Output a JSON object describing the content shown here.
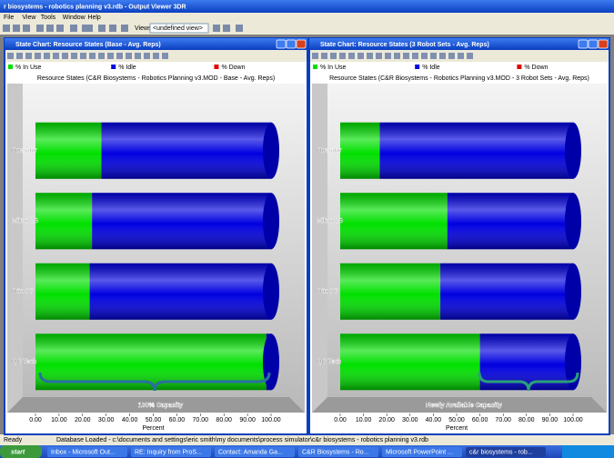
{
  "app": {
    "title": "r biosystems - robotics planning v3.rdb - Output Viewer 3DR",
    "menu": [
      "File",
      "View",
      "Tools",
      "Window",
      "Help"
    ],
    "views_label": "Views:",
    "view_select": "<undefined view>"
  },
  "chart_data": [
    {
      "type": "bar",
      "stacked": true,
      "horizontal": true,
      "window_title": "State Chart: Resource States (Base - Avg. Reps)",
      "title": "Resource States (C&R Biosystems - Robotics Planning v3.MOD - Base - Avg. Reps)",
      "categories": [
        "Operator",
        "Milton LS",
        "Otto P7",
        "QC Tech"
      ],
      "series": [
        {
          "name": "% In Use",
          "color": "#00e000",
          "values": [
            28,
            24,
            23,
            98
          ]
        },
        {
          "name": "% Idle",
          "color": "#0000e0",
          "values": [
            72,
            76,
            77,
            2
          ]
        },
        {
          "name": "% Down",
          "color": "#e00000",
          "values": [
            0,
            0,
            0,
            0
          ]
        }
      ],
      "xlim": [
        0,
        100
      ],
      "xticks": [
        {
          "value": 0,
          "label": "0.00"
        },
        {
          "value": 10,
          "label": "10.00"
        },
        {
          "value": 20,
          "label": "20.00"
        },
        {
          "value": 30,
          "label": "30.00"
        },
        {
          "value": 40,
          "label": "40.00"
        },
        {
          "value": 50,
          "label": "50.00"
        },
        {
          "value": 60,
          "label": "60.00"
        },
        {
          "value": 70,
          "label": "70.00"
        },
        {
          "value": 80,
          "label": "80.00"
        },
        {
          "value": 90,
          "label": "90.00"
        },
        {
          "value": 100,
          "label": "100.00"
        }
      ],
      "xlabel": "Percent",
      "annotation": "100% Capacity"
    },
    {
      "type": "bar",
      "stacked": true,
      "horizontal": true,
      "window_title": "State Chart: Resource States (3 Robot Sets - Avg. Reps)",
      "title": "Resource States (C&R Biosystems - Robotics Planning v3.MOD - 3 Robot Sets - Avg. Reps)",
      "categories": [
        "Operator",
        "Milton LS",
        "Otto P7",
        "QC Tech"
      ],
      "series": [
        {
          "name": "% In Use",
          "color": "#00e000",
          "values": [
            17,
            46,
            43,
            60
          ]
        },
        {
          "name": "% Idle",
          "color": "#0000e0",
          "values": [
            83,
            54,
            57,
            40
          ]
        },
        {
          "name": "% Down",
          "color": "#e00000",
          "values": [
            0,
            0,
            0,
            0
          ]
        }
      ],
      "xlim": [
        0,
        100
      ],
      "xticks": [
        {
          "value": 0,
          "label": "0.00"
        },
        {
          "value": 10,
          "label": "10.00"
        },
        {
          "value": 20,
          "label": "20.00"
        },
        {
          "value": 30,
          "label": "30.00"
        },
        {
          "value": 40,
          "label": "40.00"
        },
        {
          "value": 50,
          "label": "50.00"
        },
        {
          "value": 60,
          "label": "60.00"
        },
        {
          "value": 70,
          "label": "70.00"
        },
        {
          "value": 80,
          "label": "80.00"
        },
        {
          "value": 90,
          "label": "90.00"
        },
        {
          "value": 100,
          "label": "100.00"
        }
      ],
      "xlabel": "Percent",
      "annotation": "Newly Available Capacity"
    }
  ],
  "status": {
    "ready": "Ready",
    "message": "Database Loaded - c:\\documents and settings\\eric smith\\my documents\\process simulator\\c&r biosystems - robotics planning v3.rdb"
  },
  "taskbar": {
    "start": "start",
    "tasks": [
      "Inbox - Microsoft Out...",
      "RE: Inquiry from ProS...",
      "Contact: Amanda Ga...",
      "C&R Biosystems - Ro...",
      "Microsoft PowerPoint ...",
      "c&r biosystems - rob..."
    ]
  }
}
